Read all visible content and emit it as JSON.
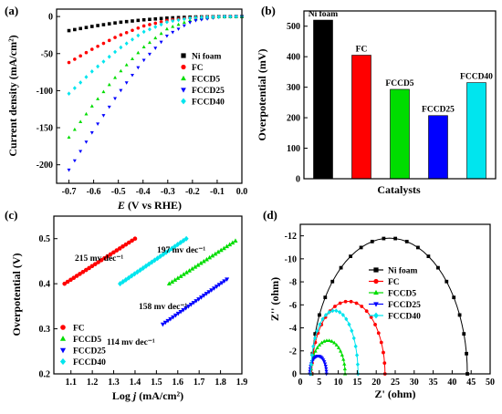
{
  "chart_data": [
    {
      "panel": "(a)",
      "type": "line",
      "xlabel_var": "E",
      "xlabel_rest": " (V vs RHE)",
      "ylabel": "Current density (mA/cm²)",
      "xlim": [
        -0.75,
        0.0
      ],
      "ylim": [
        -225,
        10
      ],
      "xticks": [
        -0.7,
        -0.6,
        -0.5,
        -0.4,
        -0.3,
        -0.2,
        -0.1,
        0.0
      ],
      "yticks": [
        0,
        -50,
        -100,
        -150,
        -200
      ],
      "legend_position": "middle-right",
      "series": [
        {
          "name": "Ni foam",
          "color": "#000000",
          "marker": "square",
          "x": [
            -0.7,
            -0.6,
            -0.5,
            -0.4,
            -0.3,
            -0.2,
            -0.1,
            0.0
          ],
          "y": [
            -19,
            -13,
            -8,
            -4.5,
            -2,
            -0.6,
            -0.1,
            0
          ]
        },
        {
          "name": "FC",
          "color": "#ff0000",
          "marker": "circle",
          "x": [
            -0.7,
            -0.6,
            -0.5,
            -0.4,
            -0.3,
            -0.2,
            -0.1,
            0.0
          ],
          "y": [
            -62,
            -43,
            -26,
            -13,
            -5,
            -1.5,
            -0.2,
            0
          ]
        },
        {
          "name": "FCCD5",
          "color": "#00dd00",
          "marker": "triangle-up",
          "x": [
            -0.7,
            -0.6,
            -0.5,
            -0.4,
            -0.3,
            -0.2,
            -0.1,
            0.0
          ],
          "y": [
            -163,
            -118,
            -77,
            -42,
            -16,
            -4,
            -0.5,
            0
          ]
        },
        {
          "name": "FCCD25",
          "color": "#0000ff",
          "marker": "triangle-down",
          "x": [
            -0.7,
            -0.6,
            -0.5,
            -0.4,
            -0.3,
            -0.2,
            -0.1,
            0.0
          ],
          "y": [
            -207,
            -153,
            -104,
            -60,
            -25,
            -6,
            -1,
            0
          ]
        },
        {
          "name": "FCCD40",
          "color": "#00e5ee",
          "marker": "diamond",
          "x": [
            -0.7,
            -0.6,
            -0.5,
            -0.4,
            -0.3,
            -0.2,
            -0.1,
            0.0
          ],
          "y": [
            -104,
            -72,
            -44,
            -21,
            -7,
            -1.5,
            -0.2,
            0
          ]
        }
      ]
    },
    {
      "panel": "(b)",
      "type": "bar",
      "xlabel": "Catalysts",
      "ylabel": "Overpotential (mV)",
      "ylim": [
        0,
        550
      ],
      "yticks": [
        0,
        100,
        200,
        300,
        400,
        500
      ],
      "categories": [
        "Ni foam",
        "FC",
        "FCCD5",
        "FCCD25",
        "FCCD40"
      ],
      "values": [
        520,
        405,
        293,
        207,
        315
      ],
      "colors": [
        "#000000",
        "#ff0000",
        "#00dd00",
        "#0000ff",
        "#00e5ee"
      ]
    },
    {
      "panel": "(c)",
      "type": "scatter",
      "xlabel_pre": "Log ",
      "xlabel_var": "j",
      "xlabel_post": " (mA/cm²)",
      "ylabel": "Overpotential (V)",
      "xlim": [
        1.02,
        1.9
      ],
      "ylim": [
        0.2,
        0.55
      ],
      "xticks": [
        1.1,
        1.2,
        1.3,
        1.4,
        1.5,
        1.6,
        1.7,
        1.8,
        1.9
      ],
      "yticks": [
        0.2,
        0.3,
        0.4,
        0.5
      ],
      "legend_position": "bottom-left",
      "tafel_slopes": [
        "215 mv dec⁻¹",
        "197 mv dec⁻¹",
        "158 mv dec⁻¹",
        "114 mv dec⁻¹"
      ],
      "series": [
        {
          "name": "FC",
          "color": "#ff0000",
          "marker": "circle",
          "x": [
            1.07,
            1.4
          ],
          "y": [
            0.4,
            0.5
          ],
          "n": 24
        },
        {
          "name": "FCCD5",
          "color": "#00dd00",
          "marker": "triangle-up",
          "x": [
            1.56,
            1.87
          ],
          "y": [
            0.4,
            0.495
          ],
          "n": 24
        },
        {
          "name": "FCCD25",
          "color": "#0000ff",
          "marker": "triangle-down",
          "x": [
            1.53,
            1.83
          ],
          "y": [
            0.31,
            0.41
          ],
          "n": 26
        },
        {
          "name": "FCCD40",
          "color": "#00e5ee",
          "marker": "diamond",
          "x": [
            1.33,
            1.64
          ],
          "y": [
            0.4,
            0.5
          ],
          "n": 24
        }
      ]
    },
    {
      "panel": "(d)",
      "type": "line",
      "xlabel": "Z' (ohm)",
      "ylabel": "Z'' (ohm)",
      "xlim": [
        0,
        50
      ],
      "ylim": [
        0,
        -13
      ],
      "xticks": [
        0,
        5,
        10,
        15,
        20,
        25,
        30,
        35,
        40,
        45,
        50
      ],
      "yticks": [
        0,
        -2,
        -4,
        -6,
        -8,
        -10,
        -12
      ],
      "legend_position": "top-right",
      "series": [
        {
          "name": "Ni foam",
          "color": "#000000",
          "marker": "square",
          "z_start": 3,
          "z_end": 44,
          "peak": 11.8
        },
        {
          "name": "FC",
          "color": "#ff0000",
          "marker": "circle",
          "z_start": 3,
          "z_end": 22.3,
          "peak": 6.3
        },
        {
          "name": "FCCD5",
          "color": "#00dd00",
          "marker": "triangle-up",
          "z_start": 2.8,
          "z_end": 11.8,
          "peak": 2.9
        },
        {
          "name": "FCCD25",
          "color": "#0000ff",
          "marker": "triangle-down",
          "z_start": 2.5,
          "z_end": 6.9,
          "peak": 1.55
        },
        {
          "name": "FCCD40",
          "color": "#00e5ee",
          "marker": "diamond",
          "z_start": 2.8,
          "z_end": 15.2,
          "peak": 5.5
        }
      ]
    }
  ]
}
